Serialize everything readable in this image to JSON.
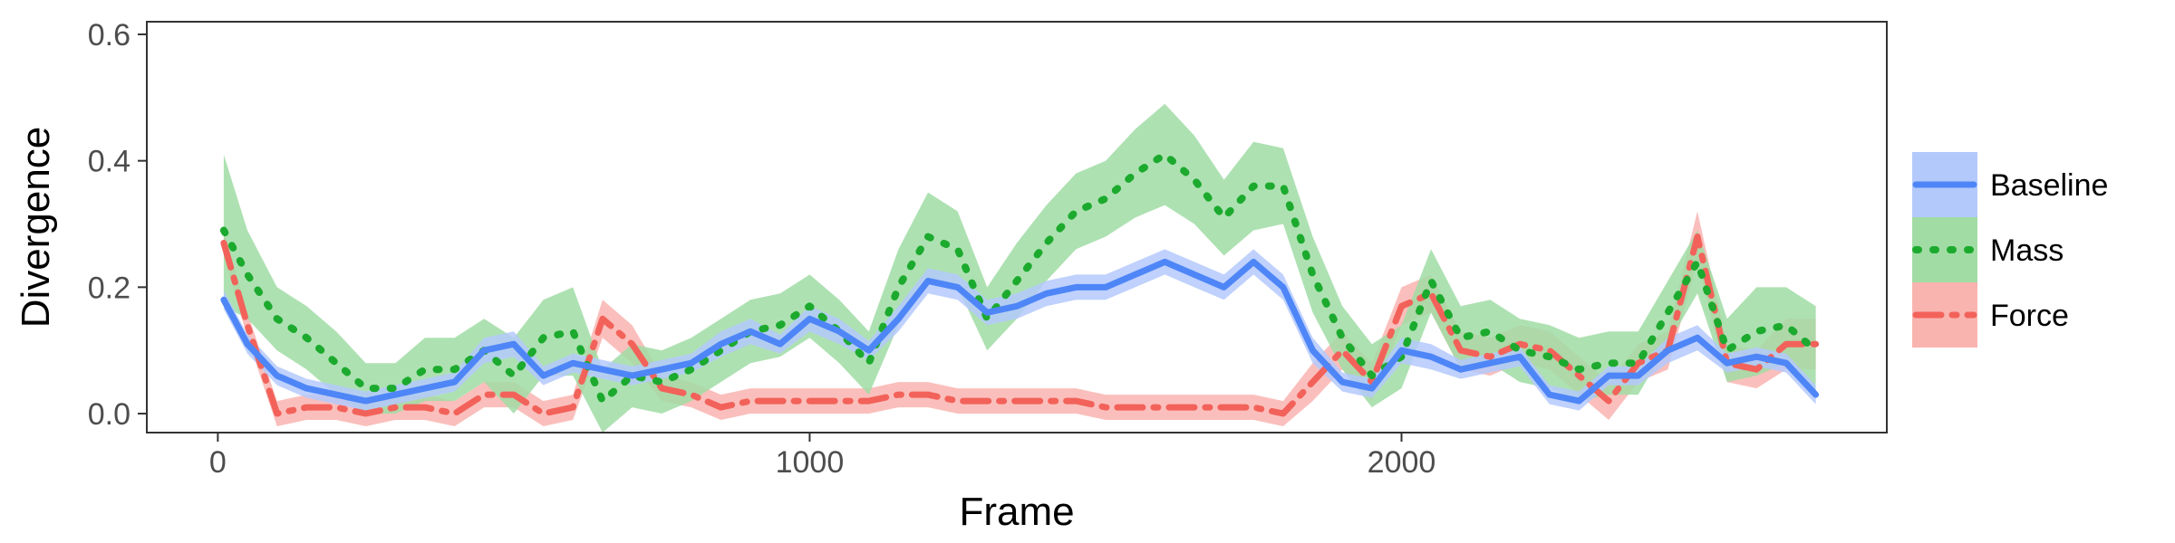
{
  "chart_data": {
    "type": "line",
    "xlabel": "Frame",
    "ylabel": "Divergence",
    "xlim": [
      -120,
      2820
    ],
    "ylim": [
      -0.03,
      0.62
    ],
    "xticks": [
      0,
      1000,
      2000
    ],
    "xtick_labels": [
      "0",
      "1000",
      "2000"
    ],
    "yticks": [
      0.0,
      0.2,
      0.4,
      0.6
    ],
    "ytick_labels": [
      "0.0",
      "0.2",
      "0.4",
      "0.6"
    ],
    "grid": false,
    "legend_position": "right",
    "x": [
      10,
      50,
      100,
      150,
      200,
      250,
      300,
      350,
      400,
      450,
      500,
      550,
      600,
      650,
      700,
      750,
      800,
      850,
      900,
      950,
      1000,
      1050,
      1100,
      1150,
      1200,
      1250,
      1300,
      1350,
      1400,
      1450,
      1500,
      1550,
      1600,
      1650,
      1700,
      1750,
      1800,
      1850,
      1900,
      1950,
      2000,
      2050,
      2100,
      2150,
      2200,
      2250,
      2300,
      2350,
      2400,
      2450,
      2500,
      2550,
      2600,
      2650,
      2700
    ],
    "series": [
      {
        "name": "Baseline",
        "color": "#4e86f7",
        "band_color": "#b4c9fb",
        "dash": "solid",
        "values": [
          0.18,
          0.11,
          0.06,
          0.04,
          0.03,
          0.02,
          0.03,
          0.04,
          0.05,
          0.1,
          0.11,
          0.06,
          0.08,
          0.07,
          0.06,
          0.07,
          0.08,
          0.11,
          0.13,
          0.11,
          0.15,
          0.13,
          0.1,
          0.15,
          0.21,
          0.2,
          0.16,
          0.17,
          0.19,
          0.2,
          0.2,
          0.22,
          0.24,
          0.22,
          0.2,
          0.24,
          0.2,
          0.1,
          0.05,
          0.04,
          0.1,
          0.09,
          0.07,
          0.08,
          0.09,
          0.03,
          0.02,
          0.06,
          0.06,
          0.1,
          0.12,
          0.08,
          0.09,
          0.08,
          0.03
        ],
        "band": [
          0.015,
          0.015,
          0.015,
          0.015,
          0.015,
          0.015,
          0.015,
          0.015,
          0.015,
          0.02,
          0.02,
          0.015,
          0.015,
          0.015,
          0.015,
          0.015,
          0.015,
          0.02,
          0.02,
          0.015,
          0.02,
          0.02,
          0.015,
          0.02,
          0.02,
          0.02,
          0.02,
          0.02,
          0.02,
          0.02,
          0.02,
          0.02,
          0.02,
          0.02,
          0.02,
          0.02,
          0.02,
          0.02,
          0.015,
          0.015,
          0.02,
          0.02,
          0.015,
          0.015,
          0.015,
          0.015,
          0.015,
          0.015,
          0.015,
          0.02,
          0.02,
          0.015,
          0.015,
          0.015,
          0.015
        ]
      },
      {
        "name": "Mass",
        "color": "#1caa2e",
        "band_color": "#a0dca4",
        "dash": "dotted",
        "values": [
          0.29,
          0.22,
          0.15,
          0.12,
          0.08,
          0.04,
          0.04,
          0.07,
          0.07,
          0.1,
          0.06,
          0.12,
          0.13,
          0.02,
          0.06,
          0.05,
          0.07,
          0.1,
          0.13,
          0.14,
          0.17,
          0.13,
          0.08,
          0.2,
          0.28,
          0.26,
          0.15,
          0.21,
          0.27,
          0.32,
          0.34,
          0.38,
          0.41,
          0.37,
          0.31,
          0.36,
          0.36,
          0.22,
          0.12,
          0.06,
          0.09,
          0.21,
          0.12,
          0.13,
          0.1,
          0.09,
          0.07,
          0.08,
          0.08,
          0.16,
          0.24,
          0.1,
          0.13,
          0.14,
          0.1
        ],
        "band": [
          0.12,
          0.07,
          0.05,
          0.05,
          0.05,
          0.04,
          0.04,
          0.05,
          0.05,
          0.05,
          0.06,
          0.06,
          0.07,
          0.05,
          0.05,
          0.05,
          0.05,
          0.05,
          0.05,
          0.05,
          0.05,
          0.05,
          0.05,
          0.06,
          0.07,
          0.06,
          0.05,
          0.06,
          0.06,
          0.06,
          0.06,
          0.07,
          0.08,
          0.07,
          0.06,
          0.07,
          0.06,
          0.06,
          0.05,
          0.05,
          0.05,
          0.05,
          0.05,
          0.05,
          0.05,
          0.05,
          0.05,
          0.05,
          0.05,
          0.05,
          0.05,
          0.05,
          0.07,
          0.06,
          0.07
        ]
      },
      {
        "name": "Force",
        "color": "#f2625a",
        "band_color": "#f9b4b0",
        "dash": "dashdot",
        "values": [
          0.27,
          0.14,
          0.0,
          0.01,
          0.01,
          0.0,
          0.01,
          0.01,
          0.0,
          0.03,
          0.03,
          0.0,
          0.01,
          0.15,
          0.11,
          0.04,
          0.03,
          0.01,
          0.02,
          0.02,
          0.02,
          0.02,
          0.02,
          0.03,
          0.03,
          0.02,
          0.02,
          0.02,
          0.02,
          0.02,
          0.01,
          0.01,
          0.01,
          0.01,
          0.01,
          0.01,
          0.0,
          0.05,
          0.1,
          0.05,
          0.17,
          0.19,
          0.1,
          0.09,
          0.11,
          0.1,
          0.06,
          0.02,
          0.08,
          0.1,
          0.28,
          0.08,
          0.07,
          0.11,
          0.11
        ],
        "band": [
          0.02,
          0.02,
          0.02,
          0.02,
          0.02,
          0.02,
          0.02,
          0.02,
          0.02,
          0.02,
          0.02,
          0.02,
          0.02,
          0.03,
          0.03,
          0.02,
          0.02,
          0.02,
          0.02,
          0.02,
          0.02,
          0.02,
          0.02,
          0.02,
          0.02,
          0.02,
          0.02,
          0.02,
          0.02,
          0.02,
          0.02,
          0.02,
          0.02,
          0.02,
          0.02,
          0.02,
          0.02,
          0.03,
          0.03,
          0.03,
          0.03,
          0.03,
          0.03,
          0.03,
          0.03,
          0.03,
          0.03,
          0.03,
          0.03,
          0.03,
          0.04,
          0.03,
          0.03,
          0.04,
          0.04
        ]
      }
    ]
  }
}
